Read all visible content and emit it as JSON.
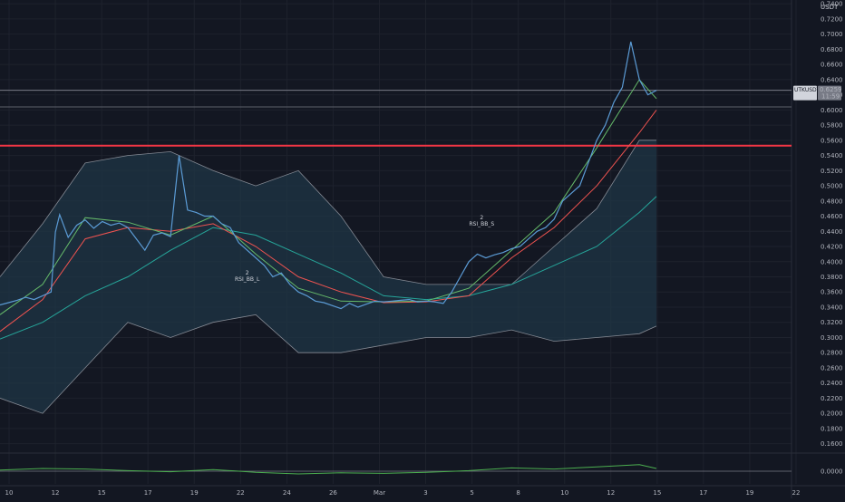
{
  "chart_data": {
    "type": "line",
    "unit_label": "USDT",
    "price_axis": {
      "ticks": [
        "0.7400",
        "0.7200",
        "0.7000",
        "0.6800",
        "0.6600",
        "0.6400",
        "0.6200",
        "0.6000",
        "0.5800",
        "0.5600",
        "0.5400",
        "0.5200",
        "0.5000",
        "0.4800",
        "0.4600",
        "0.4400",
        "0.4200",
        "0.4000",
        "0.3800",
        "0.3600",
        "0.3400",
        "0.3200",
        "0.3000",
        "0.2800",
        "0.2600",
        "0.2400",
        "0.2200",
        "0.2000",
        "0.1800",
        "0.1600"
      ],
      "range": [
        0.15,
        0.745
      ],
      "grid": true
    },
    "time_axis": {
      "ticks": [
        "10",
        "12",
        "15",
        "17",
        "19",
        "22",
        "24",
        "26",
        "Mar",
        "3",
        "5",
        "8",
        "10",
        "12",
        "15",
        "17",
        "19",
        "22"
      ]
    },
    "price_series": {
      "name": "UTKUSDT",
      "color": "#5b9bd5",
      "x": [
        0,
        4,
        8,
        12,
        16,
        20,
        24,
        26,
        28,
        32,
        36,
        40,
        44,
        48,
        52,
        56,
        60,
        64,
        68,
        72,
        76,
        80,
        84,
        88,
        92,
        96,
        100,
        104,
        108,
        112,
        116,
        120,
        124,
        128,
        132,
        136,
        140,
        144,
        148,
        152,
        156,
        160,
        164,
        168,
        172,
        176,
        180,
        184,
        188,
        192,
        196,
        200,
        204,
        208,
        212,
        216,
        220,
        224,
        228,
        232,
        236,
        240,
        244,
        248,
        252,
        256,
        260,
        264,
        268,
        272,
        276,
        280,
        284,
        288,
        292,
        296,
        300,
        304,
        308
      ],
      "close": [
        0.343,
        0.346,
        0.349,
        0.353,
        0.35,
        0.355,
        0.36,
        0.439,
        0.462,
        0.432,
        0.448,
        0.455,
        0.444,
        0.453,
        0.448,
        0.451,
        0.445,
        0.43,
        0.415,
        0.435,
        0.438,
        0.433,
        0.54,
        0.468,
        0.465,
        0.46,
        0.46,
        0.45,
        0.445,
        0.425,
        0.415,
        0.405,
        0.395,
        0.38,
        0.385,
        0.37,
        0.36,
        0.355,
        0.348,
        0.346,
        0.342,
        0.338,
        0.345,
        0.34,
        0.344,
        0.348,
        0.347,
        0.348,
        0.349,
        0.35,
        0.347,
        0.348,
        0.347,
        0.345,
        0.36,
        0.38,
        0.4,
        0.41,
        0.405,
        0.409,
        0.412,
        0.417,
        0.42,
        0.43,
        0.44,
        0.445,
        0.456,
        0.48,
        0.49,
        0.5,
        0.53,
        0.56,
        0.58,
        0.61,
        0.63,
        0.69,
        0.64,
        0.62,
        0.6259
      ],
      "last_value": 0.6259,
      "countdown": "11:59"
    },
    "moving_averages": [
      {
        "color": "#26a69a",
        "x": [
          0,
          20,
          40,
          60,
          80,
          100,
          120,
          140,
          160,
          180,
          200,
          220,
          240,
          260,
          280,
          300,
          308
        ],
        "values": [
          0.298,
          0.32,
          0.355,
          0.38,
          0.415,
          0.445,
          0.435,
          0.41,
          0.385,
          0.355,
          0.35,
          0.355,
          0.37,
          0.395,
          0.42,
          0.465,
          0.486
        ]
      },
      {
        "color": "#ef5350",
        "x": [
          0,
          20,
          40,
          60,
          80,
          100,
          120,
          140,
          160,
          180,
          200,
          220,
          240,
          260,
          280,
          300,
          308
        ],
        "values": [
          0.308,
          0.35,
          0.43,
          0.445,
          0.44,
          0.45,
          0.42,
          0.38,
          0.36,
          0.346,
          0.347,
          0.355,
          0.405,
          0.445,
          0.5,
          0.57,
          0.6
        ]
      },
      {
        "color": "#66bb6a",
        "x": [
          0,
          20,
          40,
          60,
          80,
          100,
          120,
          140,
          160,
          180,
          200,
          220,
          240,
          260,
          280,
          300,
          308
        ],
        "values": [
          0.33,
          0.37,
          0.458,
          0.452,
          0.435,
          0.46,
          0.41,
          0.365,
          0.348,
          0.347,
          0.348,
          0.365,
          0.415,
          0.465,
          0.55,
          0.64,
          0.615
        ]
      }
    ],
    "bollinger_bands": {
      "fill": "#1f3646",
      "x": [
        0,
        20,
        40,
        60,
        80,
        100,
        120,
        140,
        160,
        180,
        200,
        220,
        240,
        260,
        280,
        300,
        308
      ],
      "upper": [
        0.38,
        0.45,
        0.53,
        0.54,
        0.545,
        0.52,
        0.5,
        0.52,
        0.46,
        0.38,
        0.37,
        0.37,
        0.37,
        0.42,
        0.47,
        0.56,
        0.56
      ],
      "lower": [
        0.22,
        0.2,
        0.26,
        0.32,
        0.3,
        0.32,
        0.33,
        0.28,
        0.28,
        0.29,
        0.3,
        0.3,
        0.31,
        0.295,
        0.3,
        0.305,
        0.315
      ]
    },
    "horizontal_lines": [
      {
        "value": 0.553,
        "color": "#f23645"
      },
      {
        "value": 0.604,
        "color": "#5d606b"
      },
      {
        "value": 0.6259,
        "color": "#787b86"
      }
    ],
    "signals": [
      {
        "label": "RSI_BB_L",
        "sublabel": "2",
        "x": 116,
        "value": 0.36,
        "color": "#d1d4dc"
      },
      {
        "label": "RSI_BB_S",
        "sublabel": "2",
        "x": 226,
        "value": 0.433,
        "color": "#d1d4dc"
      }
    ],
    "oscillator": {
      "zero_label": "0.0000",
      "color": "#4caf50",
      "x": [
        0,
        20,
        40,
        60,
        80,
        100,
        120,
        140,
        160,
        180,
        200,
        220,
        240,
        260,
        280,
        300,
        308
      ],
      "values": [
        0.2,
        0.5,
        0.4,
        0.1,
        -0.1,
        0.3,
        -0.2,
        -0.5,
        -0.3,
        -0.4,
        -0.2,
        0.1,
        0.6,
        0.4,
        0.8,
        1.2,
        0.5
      ]
    }
  }
}
